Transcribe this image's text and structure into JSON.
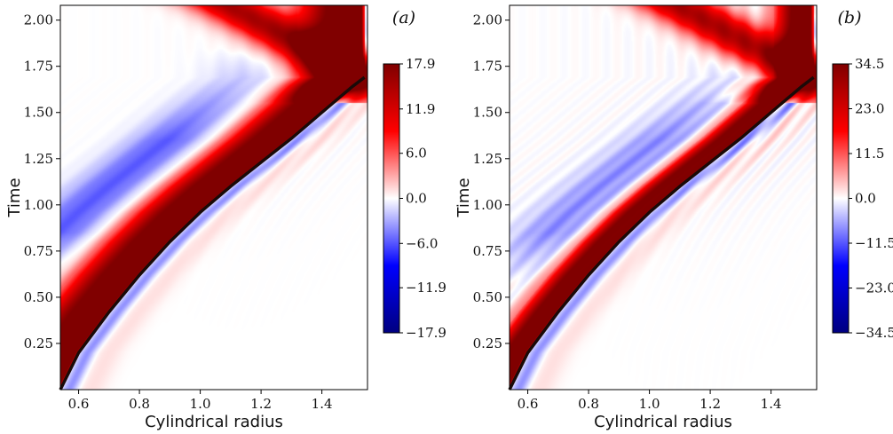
{
  "chart_data": [
    {
      "type": "heatmap",
      "panel_label": "(a)",
      "xlabel": "Cylindrical radius",
      "ylabel": "Time",
      "xlim": [
        0.54,
        1.55
      ],
      "ylim": [
        0.0,
        2.08
      ],
      "x_ticks": [
        0.6,
        0.8,
        1.0,
        1.2,
        1.4
      ],
      "x_tick_labels": [
        "0.6",
        "0.8",
        "1.0",
        "1.2",
        "1.4"
      ],
      "y_ticks": [
        0.25,
        0.5,
        0.75,
        1.0,
        1.25,
        1.5,
        1.75,
        2.0
      ],
      "y_tick_labels": [
        "0.25",
        "0.50",
        "0.75",
        "1.00",
        "1.25",
        "1.50",
        "1.75",
        "2.00"
      ],
      "colorbar": {
        "min": -17.9,
        "max": 17.9,
        "ticks": [
          17.9,
          11.9,
          6.0,
          0.0,
          -6.0,
          -11.9,
          -17.9
        ],
        "tick_labels": [
          "17.9",
          "11.9",
          "6.0",
          "0.0",
          "−6.0",
          "−11.9",
          "−17.9"
        ],
        "colormap": "seismic"
      },
      "front_line": {
        "color": "#1a0a08",
        "x": [
          0.54,
          0.6,
          0.7,
          0.8,
          0.9,
          1.0,
          1.1,
          1.2,
          1.3,
          1.4,
          1.45,
          1.5,
          1.54
        ],
        "y": [
          0.0,
          0.2,
          0.42,
          0.62,
          0.8,
          0.96,
          1.1,
          1.23,
          1.36,
          1.5,
          1.57,
          1.64,
          1.69
        ]
      },
      "band_width": 0.11,
      "blue_lobe_strength": 0.32,
      "ripple_strength": 0.05
    },
    {
      "type": "heatmap",
      "panel_label": "(b)",
      "xlabel": "Cylindrical radius",
      "ylabel": "Time",
      "xlim": [
        0.54,
        1.55
      ],
      "ylim": [
        0.0,
        2.08
      ],
      "x_ticks": [
        0.6,
        0.8,
        1.0,
        1.2,
        1.4
      ],
      "x_tick_labels": [
        "0.6",
        "0.8",
        "1.0",
        "1.2",
        "1.4"
      ],
      "y_ticks": [
        0.25,
        0.5,
        0.75,
        1.0,
        1.25,
        1.5,
        1.75,
        2.0
      ],
      "y_tick_labels": [
        "0.25",
        "0.50",
        "0.75",
        "1.00",
        "1.25",
        "1.50",
        "1.75",
        "2.00"
      ],
      "colorbar": {
        "min": -34.5,
        "max": 34.5,
        "ticks": [
          34.5,
          23.0,
          11.5,
          0.0,
          -11.5,
          -23.0,
          -34.5
        ],
        "tick_labels": [
          "34.5",
          "23.0",
          "11.5",
          "0.0",
          "−11.5",
          "−23.0",
          "−34.5"
        ],
        "colormap": "seismic"
      },
      "front_line": {
        "color": "#1a0a08",
        "x": [
          0.54,
          0.6,
          0.7,
          0.8,
          0.9,
          1.0,
          1.1,
          1.2,
          1.3,
          1.4,
          1.45,
          1.5,
          1.54
        ],
        "y": [
          0.0,
          0.2,
          0.42,
          0.62,
          0.8,
          0.96,
          1.1,
          1.23,
          1.36,
          1.5,
          1.57,
          1.64,
          1.69
        ]
      },
      "band_width": 0.065,
      "blue_lobe_strength": 0.22,
      "ripple_strength": 0.12
    }
  ]
}
